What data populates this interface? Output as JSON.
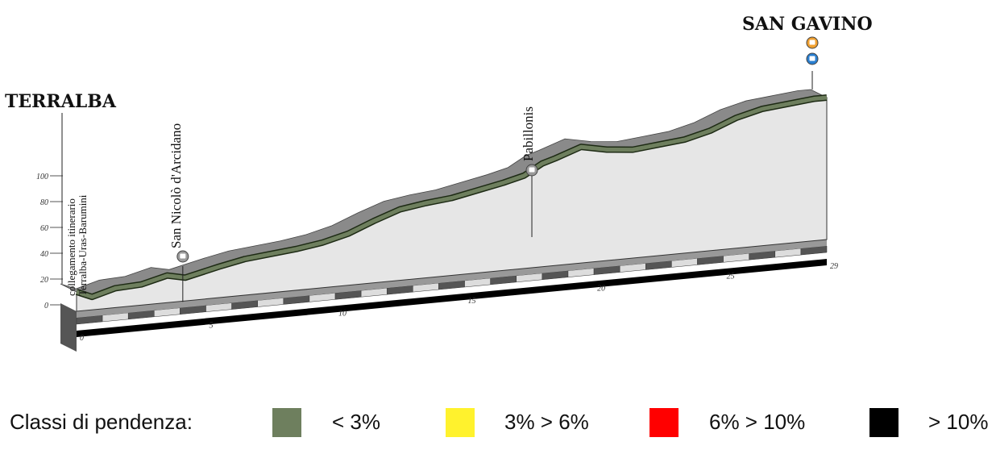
{
  "places": {
    "start": "TERRALBA",
    "finish": "SAN GAVINO",
    "intermediate_1": "San Nicolò d'Arcidano",
    "intermediate_2": "Pabillonis",
    "note_line1": "collegamento itinerario",
    "note_line2": "Terralba-Uras-Barumini"
  },
  "chart_data": {
    "type": "area",
    "x_unit": "km",
    "y_unit": "m",
    "ylim": [
      0,
      100
    ],
    "y_ticks": [
      "0",
      "20",
      "40",
      "60",
      "80",
      "100"
    ],
    "x_ticks": [
      "0",
      "5",
      "10",
      "15",
      "20",
      "25",
      "29"
    ],
    "x": [
      0,
      0.6,
      1.5,
      2.5,
      3.5,
      4.2,
      5.5,
      6.5,
      7.5,
      8.5,
      9.5,
      10.5,
      11.5,
      12.5,
      13.5,
      14.5,
      15.5,
      16.5,
      17.3,
      18.0,
      18.5,
      19.5,
      20.5,
      21.5,
      22.5,
      23.5,
      24.5,
      25.5,
      26.5,
      27.5,
      28.5,
      29
    ],
    "elevation": [
      15,
      10,
      15,
      16,
      21,
      18,
      24,
      28,
      30,
      32,
      35,
      40,
      48,
      55,
      58,
      60,
      64,
      68,
      72,
      80,
      83,
      90,
      86,
      84,
      86,
      88,
      93,
      101,
      106,
      108,
      110,
      110
    ],
    "slope_classes": [
      {
        "label": "< 3%",
        "color": "#6e7f5e"
      },
      {
        "label": "3% > 6%",
        "color": "#fff22d"
      },
      {
        "label": "6% > 10%",
        "color": "#ff0000"
      },
      {
        "label": "> 10%",
        "color": "#000000"
      }
    ]
  },
  "legend": {
    "title": "Classi di pendenza:",
    "items": [
      {
        "label": "< 3%",
        "color": "#6e7f5e"
      },
      {
        "label": "3% > 6%",
        "color": "#fff22d"
      },
      {
        "label": "6% > 10%",
        "color": "#ff0000"
      },
      {
        "label": "> 10%",
        "color": "#000000"
      }
    ]
  },
  "icons": {
    "intermediate_1": "station-icon",
    "intermediate_2": "station-icon",
    "finish_top": "train-icon",
    "finish_bottom": "bus-icon"
  }
}
